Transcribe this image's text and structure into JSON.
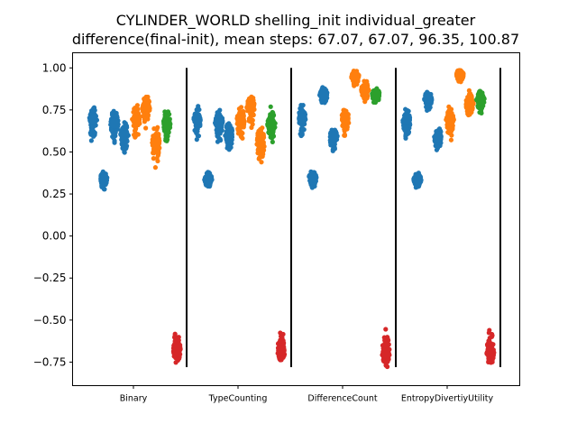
{
  "chart_data": {
    "type": "scatter",
    "title_lines": [
      "CYLINDER_WORLD shelling_init individual_greater",
      "difference(final-init), mean steps: 67.07, 67.07, 96.35, 100.87"
    ],
    "categories": [
      "Binary",
      "TypeCounting",
      "DifferenceCount",
      "EntropyDivertiyUtility"
    ],
    "ylim": [
      -0.89,
      1.09
    ],
    "yticks": [
      "1.00",
      "0.75",
      "0.50",
      "0.25",
      "0.00",
      "−0.25",
      "−0.50",
      "−0.75"
    ],
    "ytick_values": [
      1.0,
      0.75,
      0.5,
      0.25,
      0.0,
      -0.25,
      -0.5,
      -0.75
    ],
    "separators_ylim": [
      -0.78,
      1.0
    ],
    "grid": false,
    "colors": {
      "blue": "#1f77b4",
      "orange": "#ff7f0e",
      "green": "#2ca02c",
      "red": "#d62728"
    },
    "groups": [
      {
        "category": "Binary",
        "strips": [
          {
            "color": "blue",
            "mean": 0.69,
            "min": 0.54,
            "max": 0.78
          },
          {
            "color": "blue",
            "mean": 0.34,
            "min": 0.27,
            "max": 0.39
          },
          {
            "color": "blue",
            "mean": 0.67,
            "min": 0.53,
            "max": 0.78
          },
          {
            "color": "blue",
            "mean": 0.6,
            "min": 0.48,
            "max": 0.7
          },
          {
            "color": "orange",
            "mean": 0.69,
            "min": 0.54,
            "max": 0.8
          },
          {
            "color": "orange",
            "mean": 0.77,
            "min": 0.61,
            "max": 0.87
          },
          {
            "color": "orange",
            "mean": 0.55,
            "min": 0.38,
            "max": 0.7
          },
          {
            "color": "green",
            "mean": 0.67,
            "min": 0.53,
            "max": 0.78
          },
          {
            "color": "red",
            "mean": -0.68,
            "min": -0.78,
            "max": -0.54
          }
        ]
      },
      {
        "category": "TypeCounting",
        "strips": [
          {
            "color": "blue",
            "mean": 0.69,
            "min": 0.54,
            "max": 0.78
          },
          {
            "color": "blue",
            "mean": 0.34,
            "min": 0.27,
            "max": 0.39
          },
          {
            "color": "blue",
            "mean": 0.67,
            "min": 0.53,
            "max": 0.78
          },
          {
            "color": "blue",
            "mean": 0.6,
            "min": 0.48,
            "max": 0.7
          },
          {
            "color": "orange",
            "mean": 0.69,
            "min": 0.54,
            "max": 0.8
          },
          {
            "color": "orange",
            "mean": 0.77,
            "min": 0.61,
            "max": 0.87
          },
          {
            "color": "orange",
            "mean": 0.55,
            "min": 0.38,
            "max": 0.7
          },
          {
            "color": "green",
            "mean": 0.67,
            "min": 0.53,
            "max": 0.78
          },
          {
            "color": "red",
            "mean": -0.68,
            "min": -0.78,
            "max": -0.54
          }
        ]
      },
      {
        "category": "DifferenceCount",
        "strips": [
          {
            "color": "blue",
            "mean": 0.7,
            "min": 0.56,
            "max": 0.8
          },
          {
            "color": "blue",
            "mean": 0.35,
            "min": 0.27,
            "max": 0.4
          },
          {
            "color": "blue",
            "mean": 0.84,
            "min": 0.76,
            "max": 0.9
          },
          {
            "color": "blue",
            "mean": 0.59,
            "min": 0.46,
            "max": 0.66
          },
          {
            "color": "orange",
            "mean": 0.7,
            "min": 0.56,
            "max": 0.78
          },
          {
            "color": "orange",
            "mean": 0.95,
            "min": 0.88,
            "max": 1.0
          },
          {
            "color": "orange",
            "mean": 0.87,
            "min": 0.78,
            "max": 0.95
          },
          {
            "color": "green",
            "mean": 0.84,
            "min": 0.76,
            "max": 0.9
          },
          {
            "color": "red",
            "mean": -0.7,
            "min": -0.8,
            "max": -0.54
          }
        ]
      },
      {
        "category": "EntropyDivertiyUtility",
        "strips": [
          {
            "color": "blue",
            "mean": 0.69,
            "min": 0.54,
            "max": 0.78
          },
          {
            "color": "blue",
            "mean": 0.34,
            "min": 0.26,
            "max": 0.39
          },
          {
            "color": "blue",
            "mean": 0.82,
            "min": 0.72,
            "max": 0.88
          },
          {
            "color": "blue",
            "mean": 0.59,
            "min": 0.47,
            "max": 0.66
          },
          {
            "color": "orange",
            "mean": 0.69,
            "min": 0.54,
            "max": 0.78
          },
          {
            "color": "orange",
            "mean": 0.96,
            "min": 0.9,
            "max": 1.0
          },
          {
            "color": "orange",
            "mean": 0.79,
            "min": 0.67,
            "max": 0.88
          },
          {
            "color": "green",
            "mean": 0.81,
            "min": 0.72,
            "max": 0.88
          },
          {
            "color": "red",
            "mean": -0.69,
            "min": -0.79,
            "max": -0.53
          }
        ]
      }
    ]
  }
}
